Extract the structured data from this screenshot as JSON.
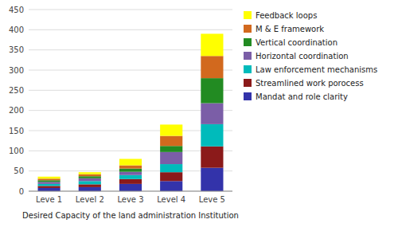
{
  "chart_data": {
    "type": "bar",
    "stacked": true,
    "categories": [
      "Leve 1",
      "Level 2",
      "Leve 3",
      "Level 4",
      "Leve 5"
    ],
    "series": [
      {
        "name": "Mandat and role clarity",
        "color": "#3333AA",
        "values": [
          8,
          10,
          18,
          25,
          58
        ]
      },
      {
        "name": "Streamlined work porocess",
        "color": "#8B1A1A",
        "values": [
          5,
          7,
          12,
          22,
          53
        ]
      },
      {
        "name": "Law enforcement mechanisms",
        "color": "#00BBBB",
        "values": [
          5,
          8,
          10,
          20,
          55
        ]
      },
      {
        "name": "Horizontal coordination",
        "color": "#7B5EA7",
        "values": [
          5,
          7,
          8,
          30,
          52
        ]
      },
      {
        "name": "Vertical coordination",
        "color": "#228B22",
        "values": [
          4,
          5,
          8,
          15,
          62
        ]
      },
      {
        "name": "M & E framework",
        "color": "#D2691E",
        "values": [
          4,
          5,
          8,
          25,
          55
        ]
      },
      {
        "name": "Feedback loops",
        "color": "#FFFF00",
        "values": [
          5,
          5,
          16,
          28,
          55
        ]
      }
    ],
    "xlabel": "Desired Capacity  of the land administration Institution",
    "ylim": [
      0,
      450
    ],
    "yticks": [
      0,
      50,
      100,
      150,
      200,
      250,
      300,
      350,
      400,
      450
    ],
    "grid": true,
    "legend": "right"
  }
}
